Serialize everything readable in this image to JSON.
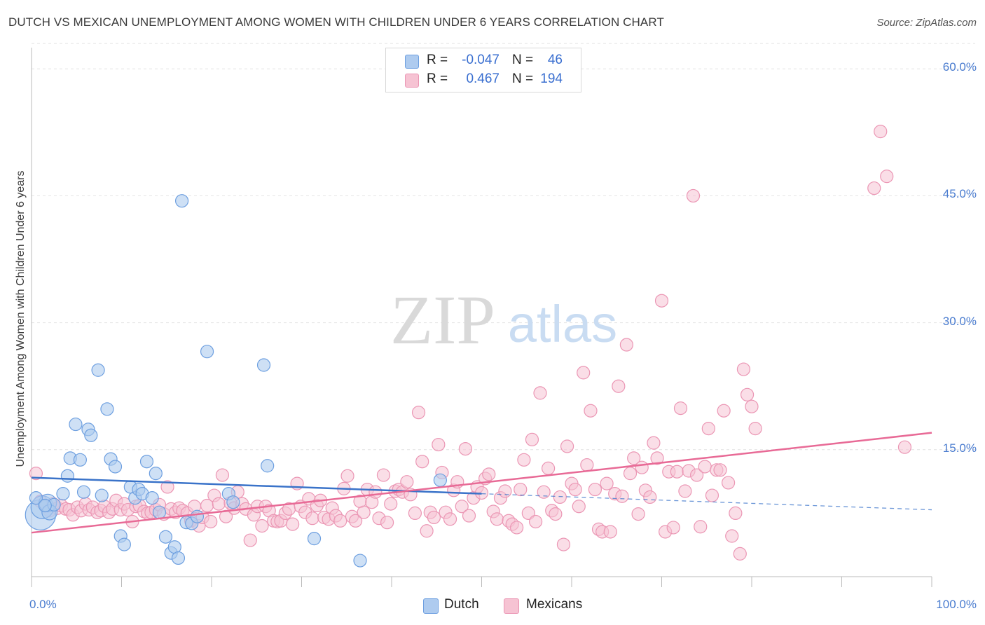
{
  "title": "DUTCH VS MEXICAN UNEMPLOYMENT AMONG WOMEN WITH CHILDREN UNDER 6 YEARS CORRELATION CHART",
  "source": "Source: ZipAtlas.com",
  "watermark": {
    "zip": "ZIP",
    "atlas": "atlas"
  },
  "legend": {
    "rows": [
      {
        "r_label": "R =",
        "r_value": "-0.047",
        "n_label": "N =",
        "n_value": "46"
      },
      {
        "r_label": "R =",
        "r_value": "0.467",
        "n_label": "N =",
        "n_value": "194"
      }
    ]
  },
  "bottom_legend": {
    "dutch": "Dutch",
    "mexicans": "Mexicans"
  },
  "colors": {
    "dutch_fill": "#aecbef",
    "dutch_stroke": "#6d9fe0",
    "dutch_line": "#3a73c9",
    "mex_fill": "#f6c3d3",
    "mex_stroke": "#eb96b4",
    "mex_line": "#e86a96",
    "tick_text": "#4a7ccf",
    "grid": "#e2e2e2"
  },
  "chart_data": {
    "type": "scatter",
    "title": "DUTCH VS MEXICAN UNEMPLOYMENT AMONG WOMEN WITH CHILDREN UNDER 6 YEARS CORRELATION CHART",
    "xlabel": "",
    "ylabel": "Unemployment Among Women with Children Under 6 years",
    "xlim": [
      0,
      100
    ],
    "ylim": [
      0,
      63
    ],
    "x_tick_labels": [
      "0.0%",
      "100.0%"
    ],
    "y_ticks": [
      15,
      30,
      45,
      60
    ],
    "y_tick_labels": [
      "15.0%",
      "30.0%",
      "45.0%",
      "60.0%"
    ],
    "grid": true,
    "legend_position": "top-center",
    "series": [
      {
        "name": "Dutch",
        "r": -0.047,
        "n": 46,
        "trend": {
          "x0": 0,
          "y0": 11.7,
          "x1": 50,
          "y1": 9.8,
          "dashed_to_x": 100,
          "dashed_to_y": 7.9
        },
        "points": [
          [
            1.0,
            7.3,
            2.4
          ],
          [
            1.2,
            8.2,
            1.8
          ],
          [
            1.8,
            8.7,
            1.4
          ],
          [
            2.0,
            7.6,
            1.2
          ],
          [
            2.5,
            8.5,
            1.0
          ],
          [
            3.5,
            9.8,
            1
          ],
          [
            4.0,
            11.9,
            1
          ],
          [
            4.3,
            14.0,
            1
          ],
          [
            4.9,
            18.0,
            1
          ],
          [
            5.4,
            13.8,
            1
          ],
          [
            5.8,
            10.0,
            1
          ],
          [
            6.3,
            17.4,
            1
          ],
          [
            6.6,
            16.7,
            1
          ],
          [
            7.4,
            24.4,
            1
          ],
          [
            7.8,
            9.6,
            1
          ],
          [
            8.4,
            19.8,
            1
          ],
          [
            8.8,
            13.9,
            1
          ],
          [
            9.3,
            13.0,
            1
          ],
          [
            9.9,
            4.8,
            1
          ],
          [
            10.3,
            3.8,
            1
          ],
          [
            11.0,
            10.6,
            1
          ],
          [
            11.5,
            9.3,
            1
          ],
          [
            11.9,
            10.3,
            1
          ],
          [
            12.3,
            9.8,
            1
          ],
          [
            12.8,
            13.6,
            1
          ],
          [
            13.4,
            9.3,
            1
          ],
          [
            13.8,
            12.2,
            1
          ],
          [
            14.2,
            7.6,
            1
          ],
          [
            14.9,
            4.7,
            1
          ],
          [
            15.5,
            2.8,
            1
          ],
          [
            15.9,
            3.5,
            1
          ],
          [
            16.3,
            2.2,
            1
          ],
          [
            16.7,
            44.4,
            1
          ],
          [
            17.2,
            6.4,
            1
          ],
          [
            17.8,
            6.3,
            1
          ],
          [
            18.4,
            7.1,
            1
          ],
          [
            19.5,
            26.6,
            1
          ],
          [
            21.9,
            9.8,
            1
          ],
          [
            22.4,
            8.8,
            1
          ],
          [
            25.8,
            25.0,
            1
          ],
          [
            26.2,
            13.1,
            1
          ],
          [
            31.4,
            4.5,
            1
          ],
          [
            36.5,
            1.9,
            1
          ],
          [
            45.4,
            11.4,
            1
          ],
          [
            0.5,
            9.3,
            1
          ],
          [
            1.5,
            8.4,
            1
          ]
        ]
      },
      {
        "name": "Mexicans",
        "r": 0.467,
        "n": 194,
        "trend": {
          "x0": 0,
          "y0": 5.2,
          "x1": 100,
          "y1": 17.0
        },
        "points": [
          [
            0.5,
            12.2
          ],
          [
            1.0,
            8.9
          ],
          [
            1.6,
            8.3
          ],
          [
            2.0,
            7.8
          ],
          [
            2.4,
            8.6
          ],
          [
            2.9,
            8.1
          ],
          [
            3.3,
            8.4
          ],
          [
            3.8,
            8.0
          ],
          [
            4.2,
            7.9
          ],
          [
            4.6,
            7.3
          ],
          [
            5.1,
            8.2
          ],
          [
            5.5,
            7.8
          ],
          [
            6.0,
            8.6
          ],
          [
            6.4,
            7.9
          ],
          [
            6.8,
            8.2
          ],
          [
            7.3,
            7.6
          ],
          [
            7.7,
            7.8
          ],
          [
            8.1,
            8.3
          ],
          [
            8.6,
            7.6
          ],
          [
            9.0,
            8.0
          ],
          [
            9.4,
            9.0
          ],
          [
            9.9,
            7.9
          ],
          [
            10.3,
            8.6
          ],
          [
            10.7,
            7.9
          ],
          [
            11.2,
            6.5
          ],
          [
            11.6,
            8.3
          ],
          [
            12.0,
            8.4
          ],
          [
            12.5,
            7.7
          ],
          [
            12.9,
            7.5
          ],
          [
            13.3,
            7.6
          ],
          [
            13.8,
            7.9
          ],
          [
            14.2,
            8.5
          ],
          [
            14.7,
            7.4
          ],
          [
            15.1,
            10.6
          ],
          [
            15.5,
            8.0
          ],
          [
            16.0,
            7.6
          ],
          [
            16.4,
            8.1
          ],
          [
            16.8,
            7.8
          ],
          [
            17.3,
            7.5
          ],
          [
            17.7,
            6.6
          ],
          [
            18.1,
            8.3
          ],
          [
            18.6,
            6.0
          ],
          [
            19.0,
            7.0
          ],
          [
            19.5,
            8.4
          ],
          [
            19.9,
            6.5
          ],
          [
            20.3,
            9.6
          ],
          [
            20.8,
            8.6
          ],
          [
            21.2,
            12.0
          ],
          [
            21.6,
            7.1
          ],
          [
            22.1,
            8.7
          ],
          [
            22.5,
            8.1
          ],
          [
            22.9,
            10.0
          ],
          [
            23.4,
            8.6
          ],
          [
            23.8,
            8.0
          ],
          [
            24.3,
            4.3
          ],
          [
            24.7,
            7.3
          ],
          [
            25.1,
            8.3
          ],
          [
            25.6,
            6.0
          ],
          [
            26.0,
            8.3
          ],
          [
            26.4,
            7.8
          ],
          [
            26.9,
            6.6
          ],
          [
            27.3,
            6.5
          ],
          [
            27.7,
            6.6
          ],
          [
            28.2,
            7.5
          ],
          [
            28.6,
            8.0
          ],
          [
            29.0,
            6.2
          ],
          [
            29.5,
            11.0
          ],
          [
            29.9,
            8.3
          ],
          [
            30.4,
            7.6
          ],
          [
            30.8,
            9.2
          ],
          [
            31.2,
            6.9
          ],
          [
            31.7,
            8.4
          ],
          [
            32.1,
            9.0
          ],
          [
            32.5,
            7.0
          ],
          [
            33.0,
            6.8
          ],
          [
            33.4,
            8.1
          ],
          [
            33.8,
            7.2
          ],
          [
            34.3,
            6.6
          ],
          [
            34.7,
            10.4
          ],
          [
            35.1,
            11.9
          ],
          [
            35.6,
            7.1
          ],
          [
            36.0,
            6.6
          ],
          [
            36.5,
            8.9
          ],
          [
            36.9,
            7.6
          ],
          [
            37.3,
            10.3
          ],
          [
            37.8,
            8.8
          ],
          [
            38.2,
            10.0
          ],
          [
            38.6,
            6.9
          ],
          [
            39.1,
            12.0
          ],
          [
            39.5,
            6.4
          ],
          [
            39.9,
            8.6
          ],
          [
            40.4,
            10.1
          ],
          [
            40.8,
            10.3
          ],
          [
            41.2,
            10.0
          ],
          [
            41.7,
            11.2
          ],
          [
            42.1,
            9.7
          ],
          [
            42.6,
            7.5
          ],
          [
            43.0,
            19.4
          ],
          [
            43.4,
            13.6
          ],
          [
            43.9,
            5.4
          ],
          [
            44.3,
            7.6
          ],
          [
            44.7,
            7.0
          ],
          [
            45.2,
            15.6
          ],
          [
            45.6,
            12.3
          ],
          [
            46.0,
            7.6
          ],
          [
            46.5,
            6.8
          ],
          [
            46.9,
            10.2
          ],
          [
            47.3,
            11.2
          ],
          [
            47.8,
            8.3
          ],
          [
            48.2,
            15.1
          ],
          [
            48.6,
            7.2
          ],
          [
            49.1,
            9.3
          ],
          [
            49.5,
            10.6
          ],
          [
            50.0,
            9.9
          ],
          [
            50.4,
            11.6
          ],
          [
            50.8,
            12.1
          ],
          [
            51.3,
            7.7
          ],
          [
            51.7,
            6.8
          ],
          [
            52.1,
            9.3
          ],
          [
            52.6,
            10.1
          ],
          [
            53.0,
            6.6
          ],
          [
            53.4,
            6.2
          ],
          [
            53.9,
            5.8
          ],
          [
            54.3,
            10.3
          ],
          [
            54.7,
            13.8
          ],
          [
            55.2,
            7.5
          ],
          [
            55.6,
            16.2
          ],
          [
            56.0,
            6.5
          ],
          [
            56.5,
            21.7
          ],
          [
            56.9,
            10.0
          ],
          [
            57.4,
            12.8
          ],
          [
            57.8,
            7.8
          ],
          [
            58.2,
            7.4
          ],
          [
            58.7,
            9.4
          ],
          [
            59.1,
            3.8
          ],
          [
            59.5,
            15.4
          ],
          [
            60.0,
            11.0
          ],
          [
            60.4,
            10.3
          ],
          [
            60.8,
            8.3
          ],
          [
            61.3,
            24.1
          ],
          [
            61.7,
            13.2
          ],
          [
            62.1,
            19.6
          ],
          [
            62.6,
            10.3
          ],
          [
            63.0,
            5.6
          ],
          [
            63.4,
            5.3
          ],
          [
            63.9,
            11.0
          ],
          [
            64.3,
            5.3
          ],
          [
            64.8,
            9.8
          ],
          [
            65.2,
            22.5
          ],
          [
            65.6,
            9.5
          ],
          [
            66.1,
            27.4
          ],
          [
            66.5,
            12.2
          ],
          [
            66.9,
            14.0
          ],
          [
            67.4,
            7.4
          ],
          [
            67.8,
            12.9
          ],
          [
            68.2,
            10.2
          ],
          [
            68.7,
            9.4
          ],
          [
            69.1,
            15.8
          ],
          [
            69.5,
            14.0
          ],
          [
            70.0,
            32.6
          ],
          [
            70.4,
            5.3
          ],
          [
            70.8,
            12.4
          ],
          [
            71.3,
            5.8
          ],
          [
            71.7,
            12.4
          ],
          [
            72.1,
            19.9
          ],
          [
            72.6,
            10.1
          ],
          [
            73.0,
            12.5
          ],
          [
            73.5,
            45.0
          ],
          [
            73.9,
            12.0
          ],
          [
            74.3,
            5.9
          ],
          [
            74.8,
            13.0
          ],
          [
            75.2,
            17.5
          ],
          [
            75.6,
            9.6
          ],
          [
            76.1,
            12.6
          ],
          [
            76.5,
            12.6
          ],
          [
            76.9,
            19.6
          ],
          [
            77.4,
            11.1
          ],
          [
            77.8,
            4.8
          ],
          [
            78.2,
            7.5
          ],
          [
            78.7,
            2.7
          ],
          [
            79.1,
            24.5
          ],
          [
            79.5,
            21.5
          ],
          [
            80.0,
            20.1
          ],
          [
            80.4,
            17.5
          ],
          [
            94.3,
            52.6
          ],
          [
            95.0,
            47.3
          ],
          [
            93.6,
            45.9
          ],
          [
            97.0,
            15.3
          ]
        ]
      }
    ]
  }
}
